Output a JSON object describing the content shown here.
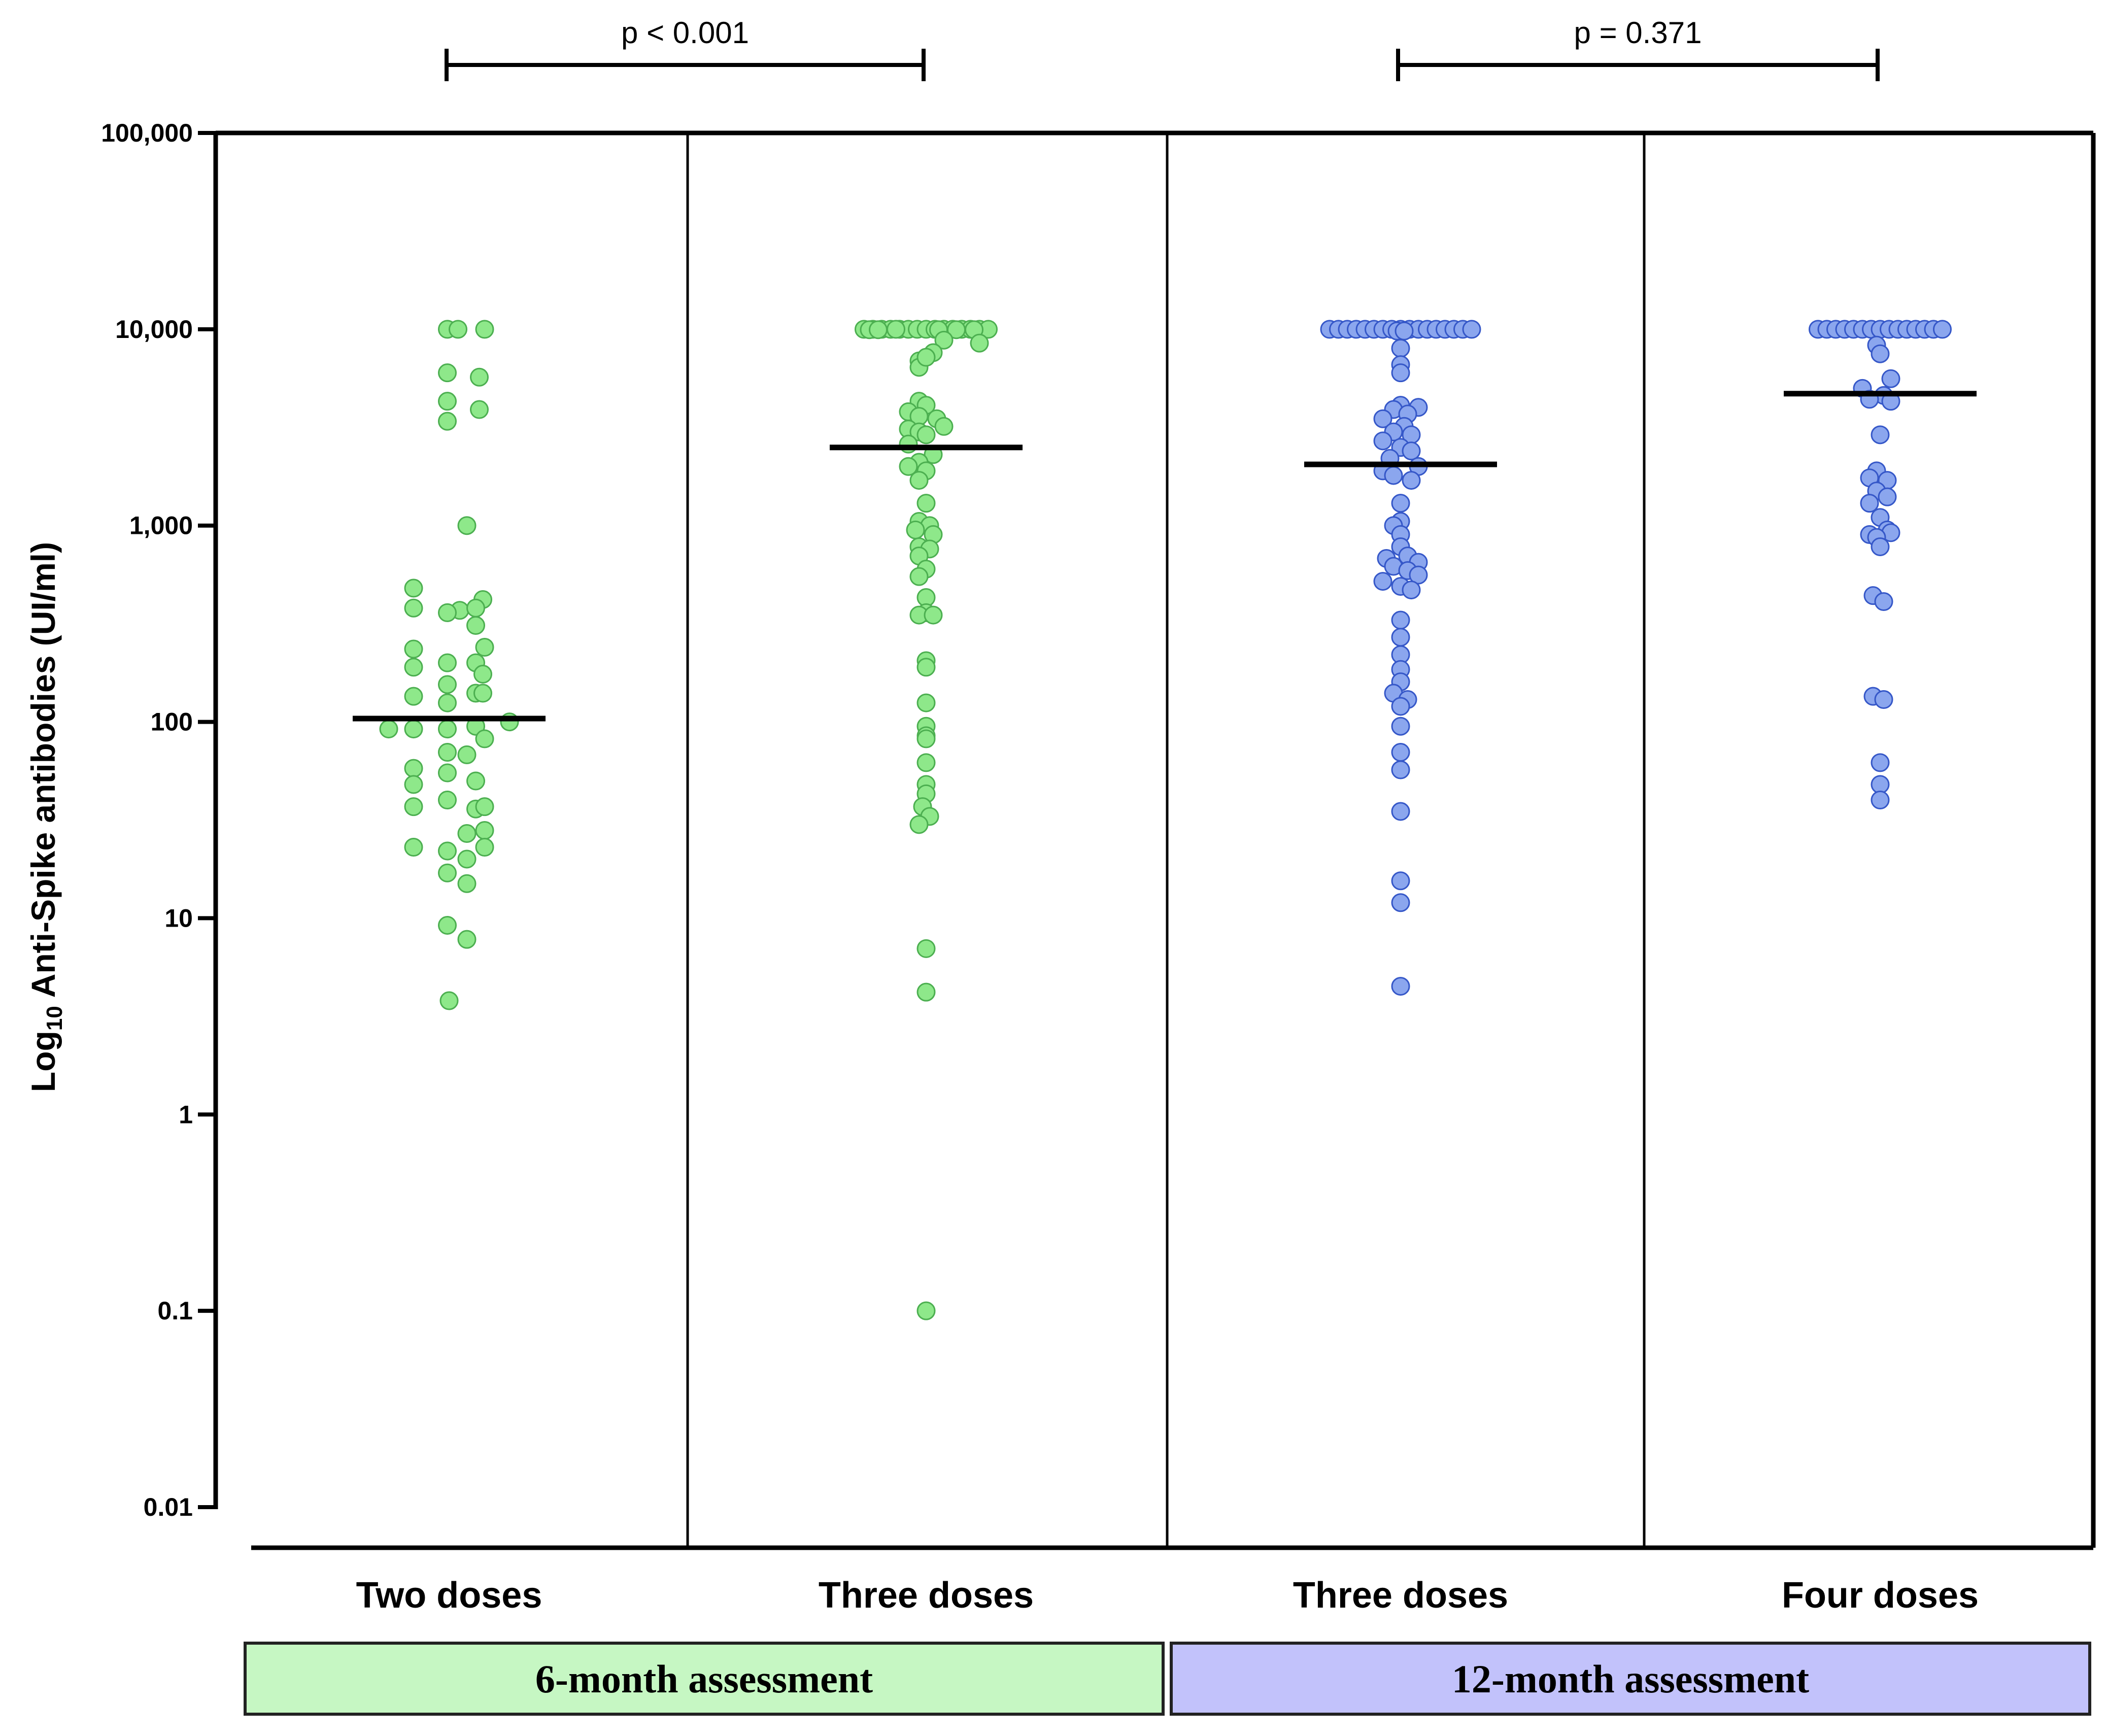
{
  "chart_data": {
    "type": "scatter",
    "ylabel": {
      "prefix": "Log",
      "subscript": "10",
      "suffix": " Anti-Spike antibodies (UI/ml)"
    },
    "y_scale": "log",
    "ylim": [
      0.01,
      100000
    ],
    "y_ticks": [
      {
        "value": 0.01,
        "label": "0.01"
      },
      {
        "value": 0.1,
        "label": "0.1"
      },
      {
        "value": 1,
        "label": "1"
      },
      {
        "value": 10,
        "label": "10"
      },
      {
        "value": 100,
        "label": "100"
      },
      {
        "value": 1000,
        "label": "1,000"
      },
      {
        "value": 10000,
        "label": "10,000"
      },
      {
        "value": 100000,
        "label": "100,000"
      }
    ],
    "categories": [
      "Two doses",
      "Three doses",
      "Three doses",
      "Four doses"
    ],
    "groups": [
      {
        "label": "6-month assessment",
        "color": "#c6f7c3",
        "categories": [
          0,
          1
        ]
      },
      {
        "label": "12-month assessment",
        "color": "#c2c2fb",
        "categories": [
          2,
          3
        ]
      }
    ],
    "comparisons": [
      {
        "from": 0,
        "to": 1,
        "label": "p < 0.001"
      },
      {
        "from": 2,
        "to": 3,
        "label": "p = 0.371"
      }
    ],
    "colors": {
      "green_fill": "#8ee88a",
      "green_stroke": "#4caf50",
      "blue_fill": "#8ba6ee",
      "blue_stroke": "#3557c8"
    },
    "series": [
      {
        "color": "green",
        "median": 104,
        "points": [
          [
            -0.05,
            10000
          ],
          [
            0.25,
            10000
          ],
          [
            1.0,
            10000
          ],
          [
            -0.05,
            6000
          ],
          [
            0.85,
            5700
          ],
          [
            -0.05,
            4300
          ],
          [
            0.85,
            3900
          ],
          [
            -0.05,
            3400
          ],
          [
            0.5,
            1000
          ],
          [
            -1.0,
            480
          ],
          [
            0.95,
            420
          ],
          [
            -1.0,
            380
          ],
          [
            0.3,
            370
          ],
          [
            0.75,
            380
          ],
          [
            -0.05,
            360
          ],
          [
            0.75,
            310
          ],
          [
            -1.0,
            235
          ],
          [
            1.0,
            240
          ],
          [
            -1.0,
            190
          ],
          [
            -0.05,
            200
          ],
          [
            0.75,
            200
          ],
          [
            -0.05,
            155
          ],
          [
            0.95,
            175
          ],
          [
            -1.0,
            135
          ],
          [
            -0.05,
            125
          ],
          [
            0.75,
            140
          ],
          [
            0.95,
            140
          ],
          [
            -1.7,
            92
          ],
          [
            -1.0,
            92
          ],
          [
            -0.05,
            92
          ],
          [
            0.75,
            95
          ],
          [
            1.7,
            100
          ],
          [
            1.0,
            82
          ],
          [
            -0.05,
            70
          ],
          [
            0.5,
            68
          ],
          [
            -1.0,
            58
          ],
          [
            -0.05,
            55
          ],
          [
            0.75,
            50
          ],
          [
            -1.0,
            48
          ],
          [
            -1.0,
            37
          ],
          [
            -0.05,
            40
          ],
          [
            0.75,
            36
          ],
          [
            1.0,
            37
          ],
          [
            0.5,
            27
          ],
          [
            1.0,
            28
          ],
          [
            -1.0,
            23
          ],
          [
            -0.05,
            22
          ],
          [
            1.0,
            23
          ],
          [
            0.5,
            20
          ],
          [
            -0.05,
            17
          ],
          [
            0.5,
            15
          ],
          [
            -0.05,
            9.2
          ],
          [
            0.5,
            7.8
          ],
          [
            0,
            3.8
          ]
        ]
      },
      {
        "color": "green",
        "median": 2500,
        "points": [
          [
            -1.75,
            10000
          ],
          [
            -1.5,
            10000
          ],
          [
            -1.25,
            10000
          ],
          [
            -1.0,
            10000
          ],
          [
            -0.75,
            10000
          ],
          [
            -0.5,
            10000
          ],
          [
            -0.25,
            10000
          ],
          [
            0,
            10000
          ],
          [
            0.25,
            10000
          ],
          [
            0.5,
            10000
          ],
          [
            0.75,
            10000
          ],
          [
            1.0,
            10000
          ],
          [
            1.25,
            10000
          ],
          [
            1.5,
            10000
          ],
          [
            1.75,
            10000
          ],
          [
            -1.6,
            9950
          ],
          [
            -1.35,
            9950
          ],
          [
            -0.85,
            10000
          ],
          [
            0.35,
            9950
          ],
          [
            0.85,
            9950
          ],
          [
            1.35,
            9950
          ],
          [
            0.5,
            8800
          ],
          [
            1.5,
            8500
          ],
          [
            0.2,
            7600
          ],
          [
            -0.2,
            6900
          ],
          [
            -0.2,
            6400
          ],
          [
            0,
            7200
          ],
          [
            -0.2,
            4300
          ],
          [
            0,
            4100
          ],
          [
            -0.5,
            3800
          ],
          [
            -0.2,
            3600
          ],
          [
            0.3,
            3500
          ],
          [
            0.5,
            3200
          ],
          [
            -0.5,
            3100
          ],
          [
            -0.2,
            3000
          ],
          [
            0,
            2900
          ],
          [
            -0.5,
            2600
          ],
          [
            0.2,
            2300
          ],
          [
            -0.2,
            2100
          ],
          [
            -0.5,
            2000
          ],
          [
            0,
            1900
          ],
          [
            -0.2,
            1700
          ],
          [
            0,
            1300
          ],
          [
            -0.2,
            1050
          ],
          [
            0.1,
            1000
          ],
          [
            -0.3,
            950
          ],
          [
            0.2,
            900
          ],
          [
            -0.2,
            780
          ],
          [
            0.1,
            760
          ],
          [
            -0.2,
            700
          ],
          [
            0,
            600
          ],
          [
            -0.2,
            550
          ],
          [
            0,
            430
          ],
          [
            0,
            360
          ],
          [
            -0.2,
            350
          ],
          [
            0.2,
            350
          ],
          [
            0,
            205
          ],
          [
            0,
            190
          ],
          [
            0,
            125
          ],
          [
            0,
            95
          ],
          [
            0,
            85
          ],
          [
            0,
            82
          ],
          [
            0,
            62
          ],
          [
            0,
            48
          ],
          [
            0,
            43
          ],
          [
            -0.1,
            37
          ],
          [
            0.1,
            33
          ],
          [
            -0.2,
            30
          ],
          [
            0,
            7
          ],
          [
            0,
            4.2
          ],
          [
            0,
            0.1
          ]
        ]
      },
      {
        "color": "blue",
        "median": 2050,
        "points": [
          [
            -2.0,
            10000
          ],
          [
            -1.75,
            10000
          ],
          [
            -1.5,
            10000
          ],
          [
            -1.25,
            10000
          ],
          [
            -1.0,
            10000
          ],
          [
            -0.75,
            10000
          ],
          [
            -0.5,
            10000
          ],
          [
            -0.25,
            10000
          ],
          [
            0,
            10000
          ],
          [
            0.25,
            10000
          ],
          [
            0.5,
            10000
          ],
          [
            0.75,
            10000
          ],
          [
            1.0,
            10000
          ],
          [
            1.25,
            10000
          ],
          [
            1.5,
            10000
          ],
          [
            1.75,
            10000
          ],
          [
            2.0,
            10000
          ],
          [
            -0.1,
            9800
          ],
          [
            0.1,
            9800
          ],
          [
            0,
            8000
          ],
          [
            0,
            6600
          ],
          [
            0,
            6000
          ],
          [
            0,
            4100
          ],
          [
            0.5,
            4000
          ],
          [
            -0.2,
            3900
          ],
          [
            0.2,
            3700
          ],
          [
            -0.5,
            3500
          ],
          [
            0.1,
            3200
          ],
          [
            -0.2,
            3000
          ],
          [
            0.3,
            2900
          ],
          [
            -0.5,
            2700
          ],
          [
            0,
            2500
          ],
          [
            0.3,
            2400
          ],
          [
            -0.3,
            2200
          ],
          [
            0.5,
            2000
          ],
          [
            -0.5,
            1900
          ],
          [
            -0.2,
            1800
          ],
          [
            0.3,
            1700
          ],
          [
            0,
            1300
          ],
          [
            0,
            1050
          ],
          [
            -0.2,
            1000
          ],
          [
            0,
            900
          ],
          [
            0,
            780
          ],
          [
            0.2,
            700
          ],
          [
            -0.4,
            680
          ],
          [
            0.5,
            650
          ],
          [
            -0.2,
            620
          ],
          [
            0.2,
            590
          ],
          [
            0.5,
            560
          ],
          [
            -0.5,
            520
          ],
          [
            0,
            490
          ],
          [
            0.3,
            470
          ],
          [
            0,
            330
          ],
          [
            0,
            270
          ],
          [
            0,
            220
          ],
          [
            0,
            185
          ],
          [
            0,
            160
          ],
          [
            -0.2,
            140
          ],
          [
            0.2,
            130
          ],
          [
            0,
            120
          ],
          [
            0,
            95
          ],
          [
            0,
            70
          ],
          [
            0,
            57
          ],
          [
            0,
            35
          ],
          [
            0,
            15.5
          ],
          [
            0,
            12
          ],
          [
            0,
            4.5
          ]
        ]
      },
      {
        "color": "blue",
        "median": 4700,
        "points": [
          [
            -1.75,
            10000
          ],
          [
            -1.5,
            10000
          ],
          [
            -1.25,
            10000
          ],
          [
            -1.0,
            10000
          ],
          [
            -0.75,
            10000
          ],
          [
            -0.5,
            10000
          ],
          [
            -0.25,
            10000
          ],
          [
            0,
            10000
          ],
          [
            0.25,
            10000
          ],
          [
            0.5,
            10000
          ],
          [
            0.75,
            10000
          ],
          [
            1.0,
            10000
          ],
          [
            1.25,
            10000
          ],
          [
            1.5,
            10000
          ],
          [
            1.75,
            10000
          ],
          [
            -0.1,
            8300
          ],
          [
            0,
            7500
          ],
          [
            0.3,
            5600
          ],
          [
            -0.5,
            5000
          ],
          [
            0.1,
            4600
          ],
          [
            -0.3,
            4400
          ],
          [
            0.3,
            4300
          ],
          [
            0,
            2900
          ],
          [
            -0.1,
            1900
          ],
          [
            0.2,
            1700
          ],
          [
            -0.3,
            1750
          ],
          [
            -0.1,
            1500
          ],
          [
            0.2,
            1400
          ],
          [
            -0.3,
            1300
          ],
          [
            0,
            1100
          ],
          [
            0.2,
            950
          ],
          [
            -0.3,
            900
          ],
          [
            0.3,
            920
          ],
          [
            -0.1,
            870
          ],
          [
            0,
            780
          ],
          [
            -0.2,
            440
          ],
          [
            0.1,
            410
          ],
          [
            -0.2,
            135
          ],
          [
            0.1,
            130
          ],
          [
            0,
            62
          ],
          [
            0,
            48
          ],
          [
            0,
            40
          ]
        ]
      }
    ]
  }
}
